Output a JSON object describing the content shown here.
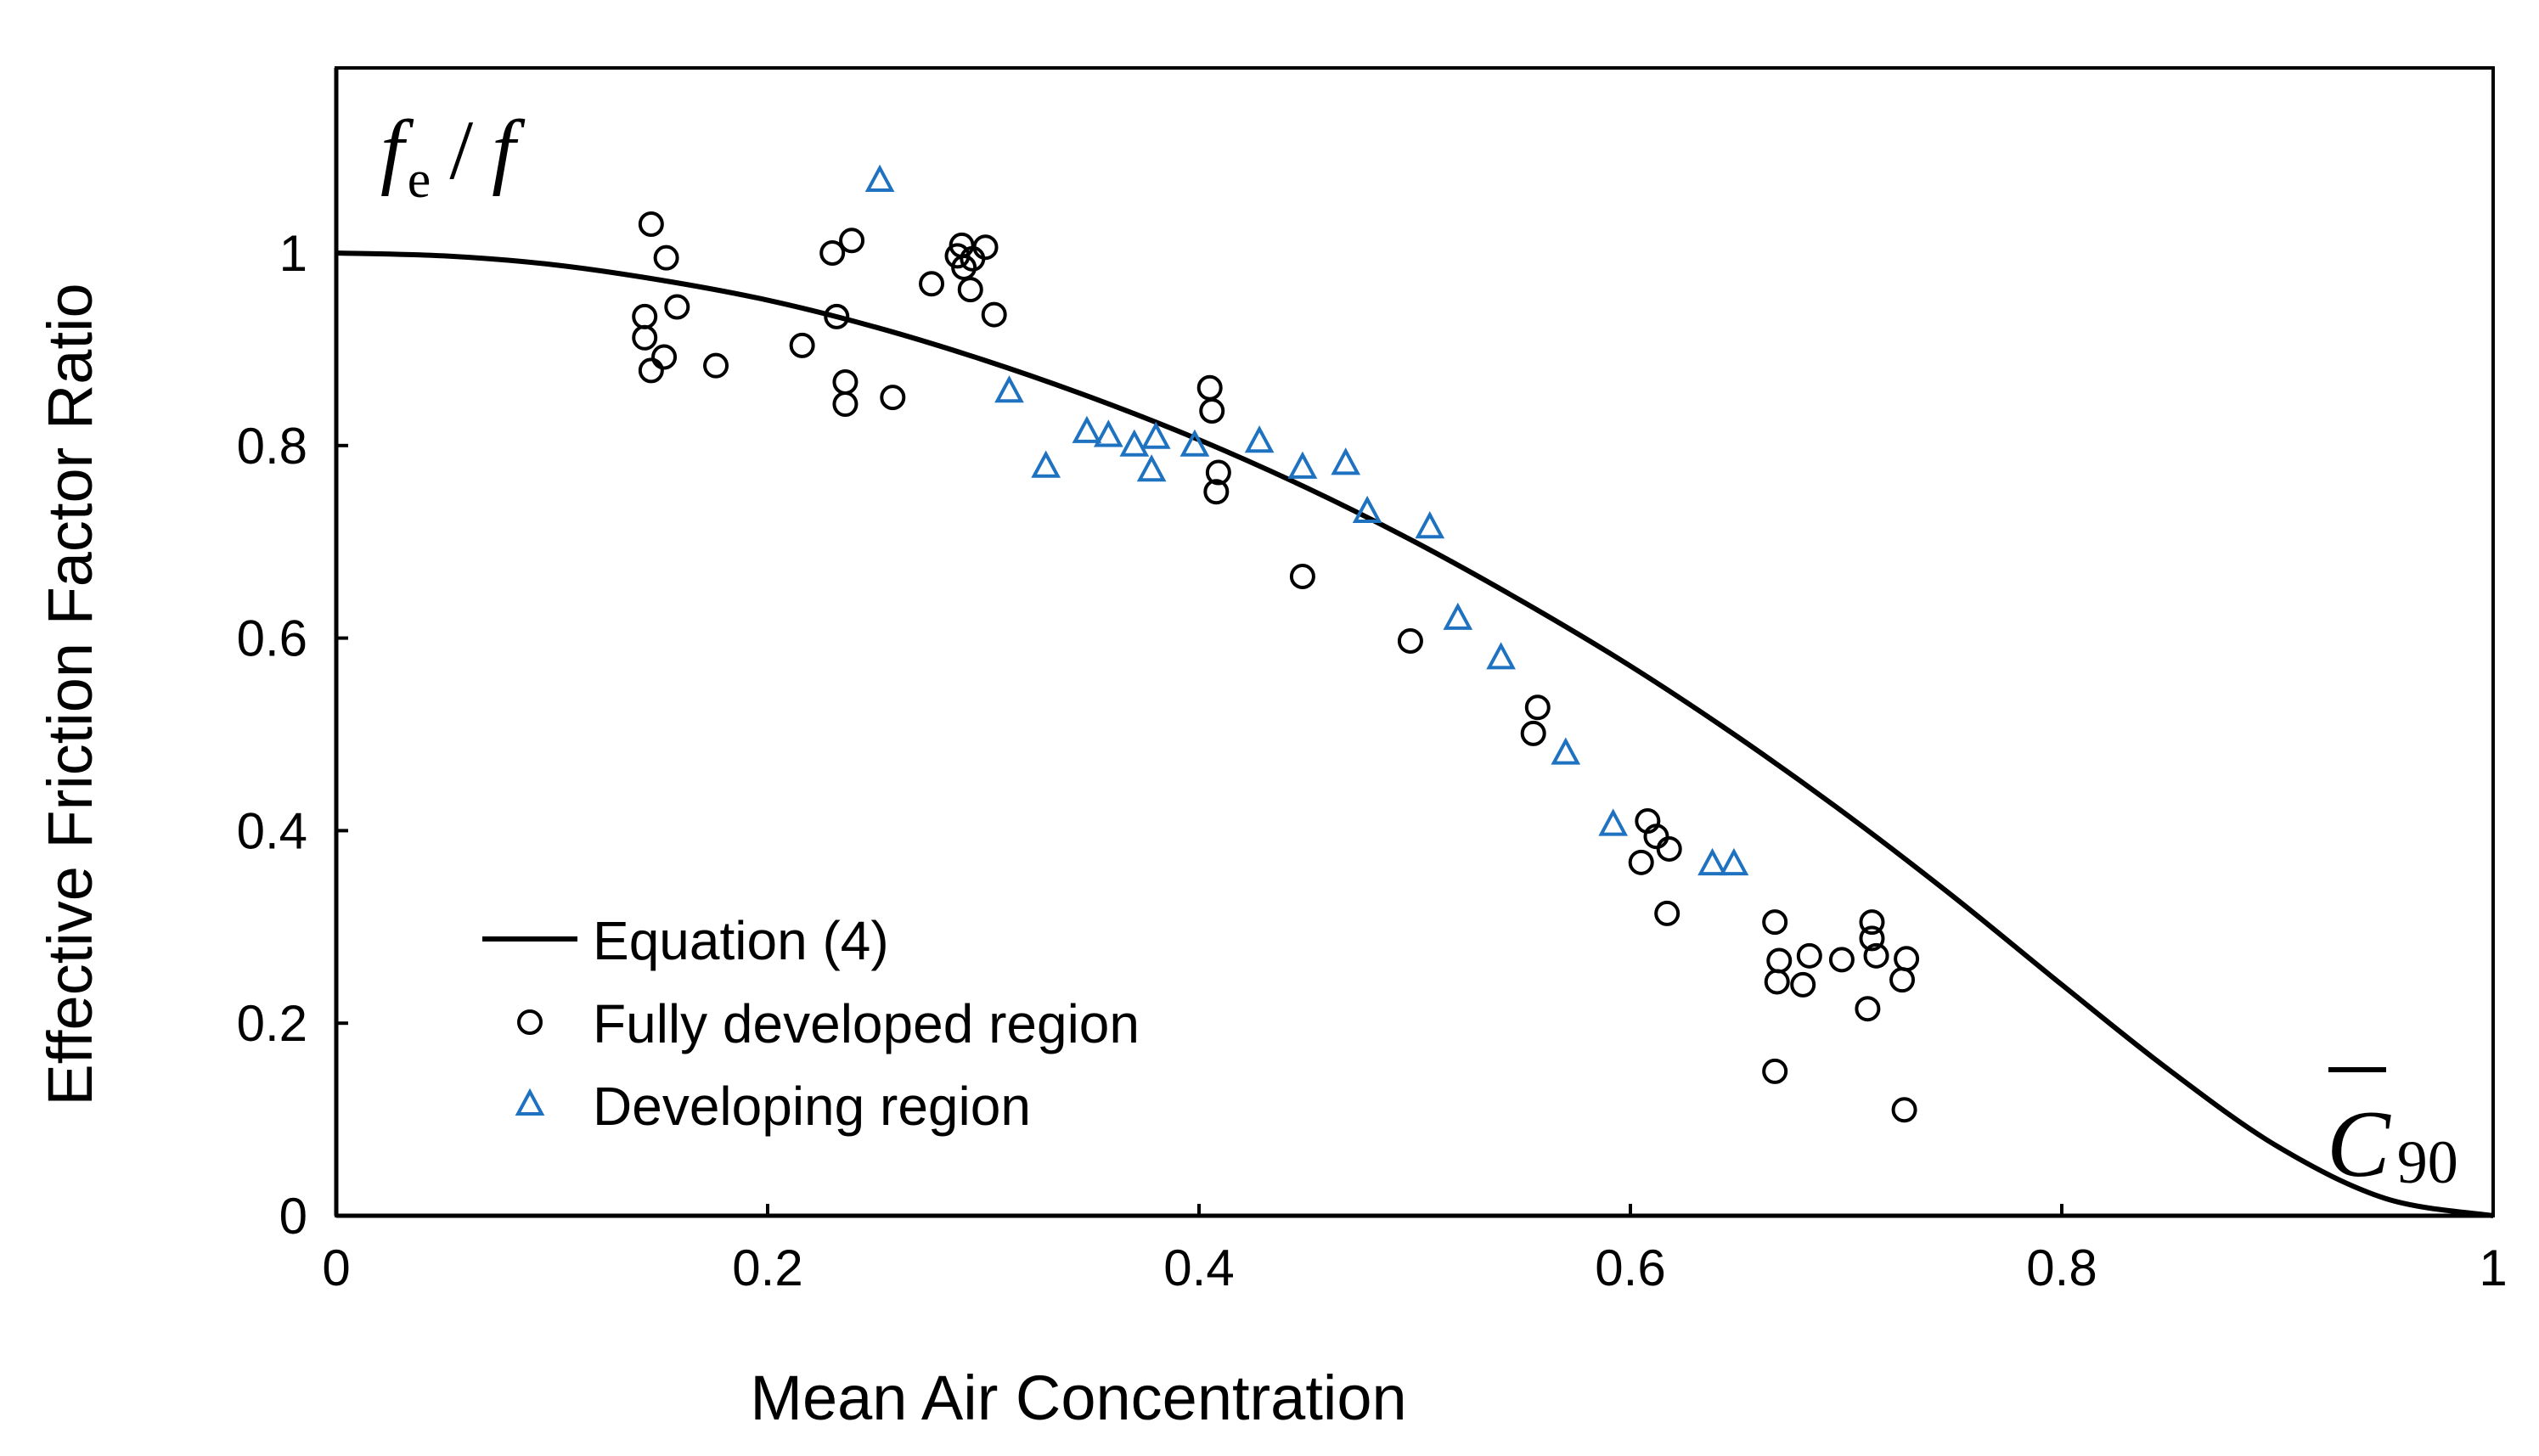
{
  "chart_data": {
    "type": "scatter",
    "title": "",
    "xlabel": "Mean Air Concentration",
    "ylabel": "Effective Friction Factor Ratio",
    "xlim": [
      0,
      1
    ],
    "ylim": [
      0,
      1.2
    ],
    "x_ticks": [
      0,
      0.2,
      0.4,
      0.6,
      0.8,
      1
    ],
    "x_tick_labels": [
      "0",
      "0.2",
      "0.4",
      "0.6",
      "0.8",
      "1"
    ],
    "y_ticks": [
      0,
      0.2,
      0.4,
      0.6,
      0.8,
      1
    ],
    "y_tick_labels": [
      "0",
      "0.2",
      "0.4",
      "0.6",
      "0.8",
      "1"
    ],
    "grid": false,
    "legend_position": "bottom-left",
    "annotations": {
      "ratio_label": {
        "main": "f",
        "sub": "e",
        "sep": "/",
        "denom": "f",
        "position": "top-left"
      },
      "c90_label": {
        "main": "C",
        "sub": "90",
        "overbar": true,
        "position": "bottom-right"
      }
    },
    "series": [
      {
        "name": "Equation (4)",
        "kind": "line",
        "color": "#000000",
        "x": [
          0,
          0.05,
          0.1,
          0.15,
          0.2,
          0.25,
          0.3,
          0.35,
          0.4,
          0.45,
          0.5,
          0.55,
          0.6,
          0.65,
          0.7,
          0.75,
          0.8,
          0.85,
          0.9,
          0.95,
          1.0
        ],
        "y": [
          1.0,
          0.997,
          0.988,
          0.972,
          0.951,
          0.923,
          0.889,
          0.85,
          0.806,
          0.756,
          0.7,
          0.638,
          0.571,
          0.497,
          0.417,
          0.331,
          0.24,
          0.151,
          0.072,
          0.018,
          0.0
        ]
      },
      {
        "name": "Fully developed region",
        "kind": "scatter",
        "marker": "circle",
        "color": "#000000",
        "x": [
          0.146,
          0.153,
          0.158,
          0.143,
          0.143,
          0.152,
          0.146,
          0.176,
          0.216,
          0.23,
          0.239,
          0.232,
          0.236,
          0.236,
          0.258,
          0.276,
          0.288,
          0.29,
          0.291,
          0.295,
          0.301,
          0.294,
          0.305,
          0.405,
          0.406,
          0.409,
          0.408,
          0.448,
          0.498,
          0.557,
          0.555,
          0.608,
          0.612,
          0.605,
          0.618,
          0.617,
          0.667,
          0.669,
          0.668,
          0.68,
          0.683,
          0.698,
          0.712,
          0.712,
          0.714,
          0.728,
          0.726,
          0.71,
          0.667,
          0.727
        ],
        "y": [
          1.03,
          0.995,
          0.944,
          0.934,
          0.912,
          0.892,
          0.878,
          0.883,
          0.904,
          1.0,
          1.013,
          0.934,
          0.866,
          0.843,
          0.85,
          0.968,
          0.997,
          1.008,
          0.985,
          0.994,
          1.006,
          0.962,
          0.936,
          0.86,
          0.836,
          0.772,
          0.752,
          0.664,
          0.597,
          0.528,
          0.501,
          0.41,
          0.394,
          0.367,
          0.381,
          0.314,
          0.305,
          0.265,
          0.243,
          0.24,
          0.27,
          0.266,
          0.305,
          0.288,
          0.27,
          0.267,
          0.245,
          0.215,
          0.15,
          0.11
        ]
      },
      {
        "name": "Developing region",
        "kind": "scatter",
        "marker": "triangle",
        "color": "#1f72c0",
        "x": [
          0.252,
          0.312,
          0.329,
          0.348,
          0.358,
          0.37,
          0.38,
          0.378,
          0.398,
          0.428,
          0.448,
          0.468,
          0.478,
          0.507,
          0.52,
          0.54,
          0.57,
          0.592,
          0.638,
          0.648
        ],
        "y": [
          1.075,
          0.856,
          0.778,
          0.814,
          0.81,
          0.8,
          0.808,
          0.774,
          0.8,
          0.804,
          0.777,
          0.781,
          0.731,
          0.715,
          0.62,
          0.579,
          0.48,
          0.406,
          0.365,
          0.365
        ]
      }
    ]
  }
}
